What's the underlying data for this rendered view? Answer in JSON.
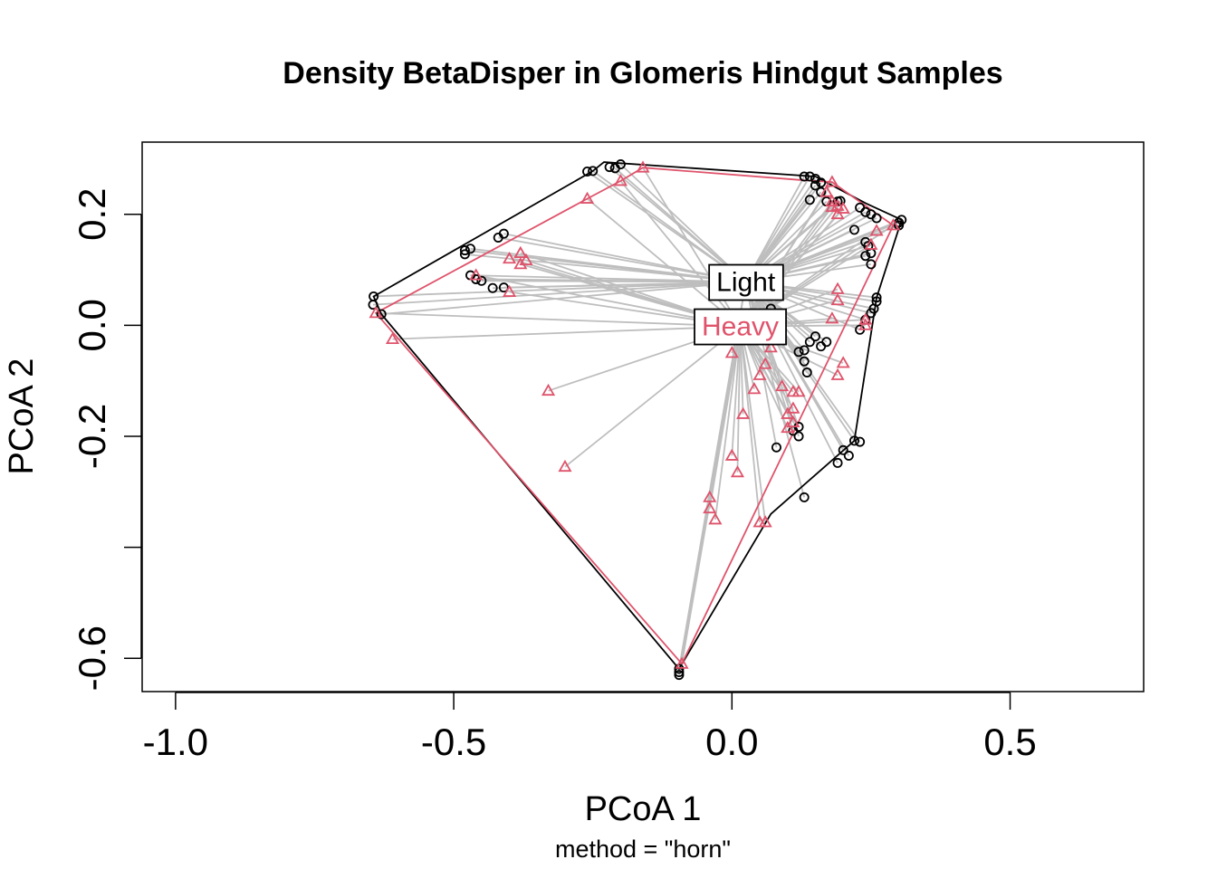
{
  "chart_data": {
    "type": "scatter",
    "title": "Density BetaDisper in Glomeris Hindgut Samples",
    "xlabel": "PCoA 1",
    "ylabel": "PCoA 2",
    "subtitle": "method = \"horn\"",
    "xlim": [
      -1.06,
      0.74
    ],
    "ylim": [
      -0.66,
      0.33
    ],
    "xticks": [
      -1.0,
      -0.5,
      0.0,
      0.5
    ],
    "xtick_labels": [
      "-1.0",
      "-0.5",
      "0.0",
      "0.5"
    ],
    "yticks": [
      -0.6,
      -0.4,
      -0.2,
      0.0,
      0.2
    ],
    "ytick_labels": [
      "-0.6",
      "",
      "-0.2",
      "0.0",
      "0.2"
    ],
    "grid": false,
    "spoke_color": "#BEBEBE",
    "groups": [
      {
        "name": "Light",
        "color": "#000000",
        "marker": "circle",
        "centroid": [
          0.025,
          0.078
        ],
        "hull": [
          [
            -0.644,
            0.052
          ],
          [
            -0.63,
            0.02
          ],
          [
            -0.095,
            -0.619
          ],
          [
            0.07,
            -0.34
          ],
          [
            0.22,
            -0.208
          ],
          [
            0.26,
            0.05
          ],
          [
            0.305,
            0.19
          ],
          [
            0.24,
            0.22
          ],
          [
            0.15,
            0.268
          ],
          [
            -0.23,
            0.294
          ],
          [
            -0.25,
            0.278
          ]
        ],
        "points": [
          [
            -0.25,
            0.278
          ],
          [
            -0.26,
            0.277
          ],
          [
            -0.22,
            0.285
          ],
          [
            -0.2,
            0.29
          ],
          [
            -0.21,
            0.283
          ],
          [
            -0.644,
            0.052
          ],
          [
            -0.645,
            0.037
          ],
          [
            -0.63,
            0.02
          ],
          [
            -0.48,
            0.135
          ],
          [
            -0.48,
            0.128
          ],
          [
            -0.47,
            0.138
          ],
          [
            -0.42,
            0.158
          ],
          [
            -0.41,
            0.165
          ],
          [
            -0.47,
            0.09
          ],
          [
            -0.46,
            0.083
          ],
          [
            -0.45,
            0.08
          ],
          [
            -0.43,
            0.067
          ],
          [
            -0.41,
            0.068
          ],
          [
            0.13,
            0.268
          ],
          [
            0.14,
            0.268
          ],
          [
            0.15,
            0.264
          ],
          [
            0.16,
            0.257
          ],
          [
            0.15,
            0.252
          ],
          [
            0.16,
            0.24
          ],
          [
            0.14,
            0.226
          ],
          [
            0.17,
            0.223
          ],
          [
            0.19,
            0.223
          ],
          [
            0.195,
            0.224
          ],
          [
            0.23,
            0.212
          ],
          [
            0.24,
            0.204
          ],
          [
            0.25,
            0.2
          ],
          [
            0.26,
            0.193
          ],
          [
            0.22,
            0.172
          ],
          [
            0.24,
            0.15
          ],
          [
            0.245,
            0.143
          ],
          [
            0.25,
            0.13
          ],
          [
            0.24,
            0.125
          ],
          [
            0.25,
            0.11
          ],
          [
            0.3,
            0.185
          ],
          [
            0.305,
            0.19
          ],
          [
            0.3,
            0.18
          ],
          [
            0.26,
            0.05
          ],
          [
            0.26,
            0.043
          ],
          [
            0.255,
            0.03
          ],
          [
            0.25,
            0.022
          ],
          [
            0.24,
            0.01
          ],
          [
            0.23,
            -0.008
          ],
          [
            0.15,
            -0.02
          ],
          [
            0.14,
            -0.03
          ],
          [
            0.13,
            -0.045
          ],
          [
            0.12,
            -0.048
          ],
          [
            0.16,
            -0.038
          ],
          [
            0.17,
            -0.03
          ],
          [
            0.13,
            -0.065
          ],
          [
            0.135,
            -0.085
          ],
          [
            0.12,
            -0.183
          ],
          [
            0.11,
            -0.19
          ],
          [
            0.12,
            -0.2
          ],
          [
            0.08,
            -0.22
          ],
          [
            0.22,
            -0.208
          ],
          [
            0.23,
            -0.21
          ],
          [
            0.2,
            -0.225
          ],
          [
            0.21,
            -0.235
          ],
          [
            0.19,
            -0.248
          ],
          [
            0.13,
            -0.31
          ],
          [
            0.07,
            0.03
          ],
          [
            -0.095,
            -0.619
          ],
          [
            -0.095,
            -0.625
          ],
          [
            -0.095,
            -0.63
          ]
        ]
      },
      {
        "name": "Heavy",
        "color": "#DF536B",
        "marker": "triangle",
        "centroid": [
          0.015,
          -0.002
        ],
        "hull": [
          [
            -0.64,
            0.022
          ],
          [
            -0.09,
            -0.61
          ],
          [
            0.29,
            0.18
          ],
          [
            0.18,
            0.258
          ],
          [
            0.12,
            0.262
          ],
          [
            -0.16,
            0.284
          ],
          [
            -0.2,
            0.26
          ],
          [
            -0.26,
            0.228
          ]
        ],
        "points": [
          [
            -0.16,
            0.284
          ],
          [
            -0.2,
            0.26
          ],
          [
            -0.26,
            0.228
          ],
          [
            -0.64,
            0.022
          ],
          [
            -0.61,
            -0.025
          ],
          [
            -0.46,
            0.09
          ],
          [
            -0.4,
            0.06
          ],
          [
            -0.4,
            0.12
          ],
          [
            -0.38,
            0.13
          ],
          [
            -0.38,
            0.11
          ],
          [
            -0.37,
            0.117
          ],
          [
            -0.33,
            -0.118
          ],
          [
            -0.3,
            -0.255
          ],
          [
            0.18,
            0.258
          ],
          [
            0.17,
            0.24
          ],
          [
            0.18,
            0.223
          ],
          [
            0.18,
            0.213
          ],
          [
            0.19,
            0.215
          ],
          [
            0.19,
            0.2
          ],
          [
            0.2,
            0.21
          ],
          [
            0.29,
            0.18
          ],
          [
            0.26,
            0.17
          ],
          [
            0.25,
            0.145
          ],
          [
            0.19,
            0.065
          ],
          [
            0.19,
            0.045
          ],
          [
            0.18,
            0.012
          ],
          [
            0.24,
            0.01
          ],
          [
            0.24,
            0.0
          ],
          [
            0.2,
            -0.068
          ],
          [
            0.19,
            -0.09
          ],
          [
            0.0,
            -0.05
          ],
          [
            0.07,
            -0.04
          ],
          [
            0.06,
            -0.07
          ],
          [
            0.05,
            -0.09
          ],
          [
            0.09,
            -0.11
          ],
          [
            0.04,
            -0.115
          ],
          [
            0.11,
            -0.12
          ],
          [
            0.12,
            -0.12
          ],
          [
            0.11,
            -0.15
          ],
          [
            0.1,
            -0.16
          ],
          [
            0.11,
            -0.175
          ],
          [
            0.1,
            -0.185
          ],
          [
            0.02,
            -0.16
          ],
          [
            0.0,
            -0.235
          ],
          [
            0.01,
            -0.265
          ],
          [
            -0.04,
            -0.31
          ],
          [
            -0.04,
            -0.33
          ],
          [
            -0.03,
            -0.35
          ],
          [
            0.05,
            -0.355
          ],
          [
            0.06,
            -0.355
          ],
          [
            -0.09,
            -0.61
          ]
        ]
      }
    ]
  }
}
